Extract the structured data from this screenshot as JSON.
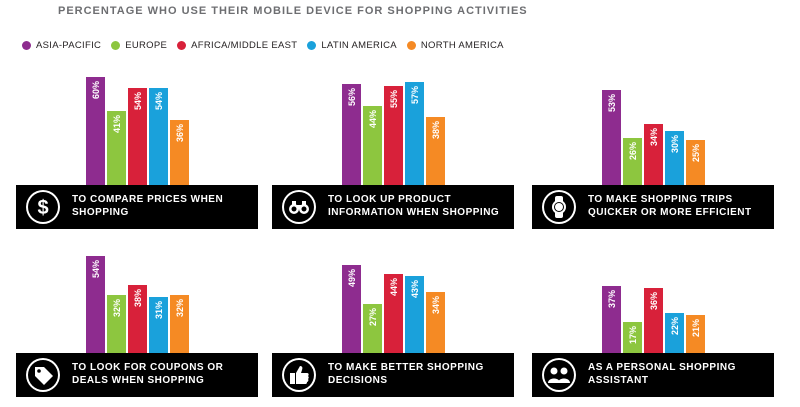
{
  "title": "PERCENTAGE WHO USE THEIR MOBILE DEVICE FOR SHOPPING ACTIVITIES",
  "legend": [
    {
      "name": "ASIA-PACIFIC",
      "color": "#8e2c8f"
    },
    {
      "name": "EUROPE",
      "color": "#8dc63f"
    },
    {
      "name": "AFRICA/MIDDLE EAST",
      "color": "#d8213a"
    },
    {
      "name": "LATIN AMERICA",
      "color": "#1aa1db"
    },
    {
      "name": "NORTH AMERICA",
      "color": "#f58a24"
    }
  ],
  "chart_data": [
    {
      "type": "bar",
      "categories": [
        "ASIA-PACIFIC",
        "EUROPE",
        "AFRICA/MIDDLE EAST",
        "LATIN AMERICA",
        "NORTH AMERICA"
      ],
      "values": [
        60,
        41,
        54,
        54,
        36
      ],
      "labels": [
        "60%",
        "41%",
        "54%",
        "54%",
        "36%"
      ],
      "caption": "TO COMPARE PRICES WHEN SHOPPING",
      "icon": "dollar-icon"
    },
    {
      "type": "bar",
      "categories": [
        "ASIA-PACIFIC",
        "EUROPE",
        "AFRICA/MIDDLE EAST",
        "LATIN AMERICA",
        "NORTH AMERICA"
      ],
      "values": [
        56,
        44,
        55,
        57,
        38
      ],
      "labels": [
        "56%",
        "44%",
        "55%",
        "57%",
        "38%"
      ],
      "caption": "TO LOOK UP PRODUCT INFORMATION WHEN SHOPPING",
      "icon": "binoculars-icon"
    },
    {
      "type": "bar",
      "categories": [
        "ASIA-PACIFIC",
        "EUROPE",
        "AFRICA/MIDDLE EAST",
        "LATIN AMERICA",
        "NORTH AMERICA"
      ],
      "values": [
        53,
        26,
        34,
        30,
        25
      ],
      "labels": [
        "53%",
        "26%",
        "34%",
        "30%",
        "25%"
      ],
      "caption": "TO MAKE SHOPPING TRIPS QUICKER OR MORE EFFICIENT",
      "icon": "watch-icon"
    },
    {
      "type": "bar",
      "categories": [
        "ASIA-PACIFIC",
        "EUROPE",
        "AFRICA/MIDDLE EAST",
        "LATIN AMERICA",
        "NORTH AMERICA"
      ],
      "values": [
        54,
        32,
        38,
        31,
        32
      ],
      "labels": [
        "54%",
        "32%",
        "38%",
        "31%",
        "32%"
      ],
      "caption": "TO LOOK FOR COUPONS OR DEALS WHEN SHOPPING",
      "icon": "tag-icon"
    },
    {
      "type": "bar",
      "categories": [
        "ASIA-PACIFIC",
        "EUROPE",
        "AFRICA/MIDDLE EAST",
        "LATIN AMERICA",
        "NORTH AMERICA"
      ],
      "values": [
        49,
        27,
        44,
        43,
        34
      ],
      "labels": [
        "49%",
        "27%",
        "44%",
        "43%",
        "34%"
      ],
      "caption": "TO MAKE BETTER SHOPPING DECISIONS",
      "icon": "thumbs-up-icon"
    },
    {
      "type": "bar",
      "categories": [
        "ASIA-PACIFIC",
        "EUROPE",
        "AFRICA/MIDDLE EAST",
        "LATIN AMERICA",
        "NORTH AMERICA"
      ],
      "values": [
        37,
        17,
        36,
        22,
        21
      ],
      "labels": [
        "37%",
        "17%",
        "36%",
        "22%",
        "21%"
      ],
      "caption": "AS A PERSONAL SHOPPING ASSISTANT",
      "icon": "people-icon"
    }
  ]
}
